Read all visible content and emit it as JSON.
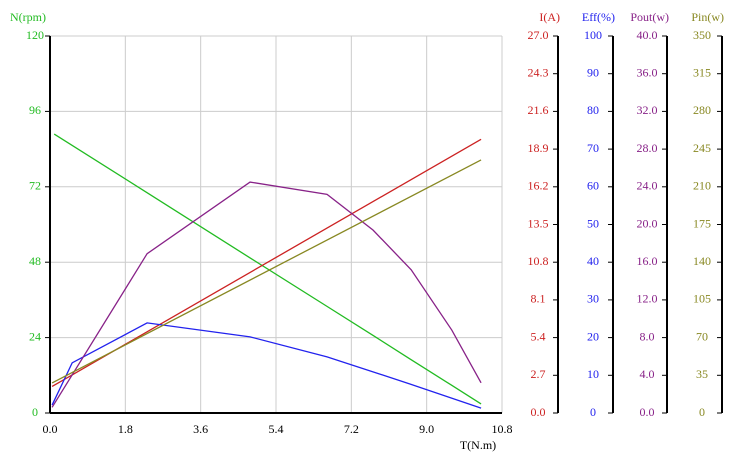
{
  "chart_data": {
    "type": "line",
    "xlabel": "T(N.m)",
    "xlim": [
      0,
      10.8
    ],
    "xticks": [
      {
        "value": 0,
        "label": "0.0"
      },
      1.8,
      3.6,
      5.4,
      7.2,
      {
        "value": 9,
        "label": "9.0"
      },
      10.8
    ],
    "grid": true,
    "axes": [
      {
        "label": "N(rpm)",
        "color": "#22bb22",
        "lim": [
          0,
          120
        ],
        "ticks": [
          0,
          24,
          48,
          72,
          96,
          120
        ]
      },
      {
        "label": "I(A)",
        "color": "#cc2222",
        "lim": [
          0,
          27
        ],
        "ticks": [
          {
            "value": 0,
            "label": "0.0"
          },
          2.7,
          5.4,
          8.1,
          10.8,
          13.5,
          16.2,
          18.9,
          21.6,
          24.3,
          {
            "value": 27,
            "label": "27.0"
          }
        ]
      },
      {
        "label": "Eff(%)",
        "color": "#2222ee",
        "lim": [
          0,
          100
        ],
        "ticks": [
          0,
          10,
          20,
          30,
          40,
          50,
          60,
          70,
          80,
          90,
          100
        ]
      },
      {
        "label": "Pout(w)",
        "color": "#882288",
        "lim": [
          0,
          40
        ],
        "ticks": [
          {
            "value": 0,
            "label": "0.0"
          },
          {
            "value": 4,
            "label": "4.0"
          },
          {
            "value": 8,
            "label": "8.0"
          },
          {
            "value": 12,
            "label": "12.0"
          },
          {
            "value": 16,
            "label": "16.0"
          },
          {
            "value": 20,
            "label": "20.0"
          },
          {
            "value": 24,
            "label": "24.0"
          },
          {
            "value": 28,
            "label": "28.0"
          },
          {
            "value": 32,
            "label": "32.0"
          },
          {
            "value": 36,
            "label": "36.0"
          },
          {
            "value": 40,
            "label": "40.0"
          }
        ]
      },
      {
        "label": "Pin(w)",
        "color": "#888822",
        "lim": [
          0,
          350
        ],
        "ticks": [
          0,
          35,
          70,
          105,
          140,
          175,
          210,
          245,
          280,
          315,
          350
        ]
      }
    ],
    "series": [
      {
        "axis": 0,
        "color": "#22bb22",
        "x": [
          0.1,
          2.3,
          4.8,
          6.6,
          7.8,
          8.6,
          9.6,
          10.3
        ],
        "values": [
          88.8,
          70.3,
          49.2,
          34.1,
          24.0,
          17.2,
          8.8,
          2.9
        ]
      },
      {
        "axis": 1,
        "color": "#cc2222",
        "x": [
          0.05,
          10.3
        ],
        "values": [
          1.9,
          19.6
        ]
      },
      {
        "axis": 2,
        "color": "#2222ee",
        "x": [
          0.05,
          0.53,
          2.32,
          4.78,
          6.62,
          8.6,
          10.3
        ],
        "values": [
          2.1,
          13.3,
          23.9,
          20.2,
          14.9,
          7.7,
          1.3
        ]
      },
      {
        "axis": 3,
        "color": "#882288",
        "x": [
          0.05,
          2.32,
          4.78,
          6.62,
          7.72,
          8.63,
          9.6,
          10.3
        ],
        "values": [
          0.6,
          16.9,
          24.5,
          23.2,
          19.4,
          15.2,
          8.8,
          3.2
        ]
      },
      {
        "axis": 4,
        "color": "#888822",
        "x": [
          0.05,
          10.3
        ],
        "values": [
          27.9,
          234.9
        ]
      }
    ]
  }
}
